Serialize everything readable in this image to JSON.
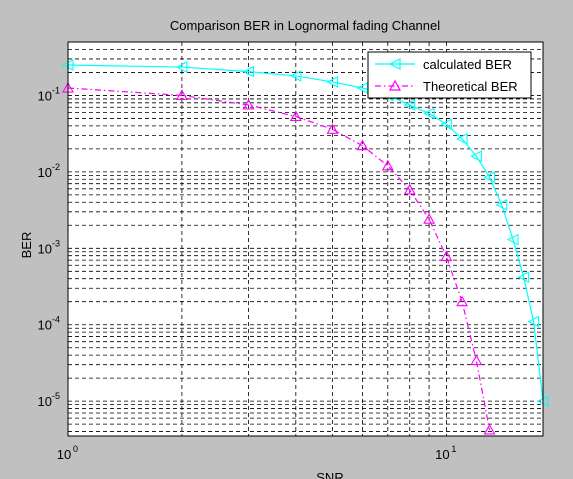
{
  "figure": {
    "background": "#c0c0c0",
    "axes_background": "#ffffff"
  },
  "chart_data": {
    "type": "line",
    "title": "Comparison BER in Lognormal fading Channel",
    "xlabel": "SNR",
    "ylabel": "BER",
    "xscale": "log",
    "yscale": "log",
    "xlim": [
      1,
      18
    ],
    "ylim": [
      3.5e-06,
      0.5
    ],
    "grid": "major and minor, dashed",
    "legend_position": "top-right",
    "x_ticks": [
      {
        "value": 1,
        "base": "10",
        "exp": "0"
      },
      {
        "value": 10,
        "base": "10",
        "exp": "1"
      }
    ],
    "y_ticks": [
      {
        "value": 1e-05,
        "base": "10",
        "exp": "-5"
      },
      {
        "value": 0.0001,
        "base": "10",
        "exp": "-4"
      },
      {
        "value": 0.001,
        "base": "10",
        "exp": "-3"
      },
      {
        "value": 0.01,
        "base": "10",
        "exp": "-2"
      },
      {
        "value": 0.1,
        "base": "10",
        "exp": "-1"
      }
    ],
    "series": [
      {
        "name": "calculated BER",
        "color": "#00ffff",
        "line": "solid",
        "marker": "triangle-left",
        "x": [
          1,
          2,
          3,
          4,
          5,
          6,
          7,
          8,
          9,
          10,
          11,
          12,
          13,
          14,
          15,
          16,
          17,
          18
        ],
        "y": [
          0.25,
          0.235,
          0.205,
          0.18,
          0.15,
          0.125,
          0.1,
          0.075,
          0.058,
          0.042,
          0.027,
          0.016,
          0.0085,
          0.0037,
          0.0013,
          0.00042,
          0.00011,
          1e-05
        ]
      },
      {
        "name": "Theoretical BER",
        "color": "#ff00ff",
        "line": "dashdot",
        "marker": "triangle-up",
        "x": [
          1,
          2,
          3,
          4,
          5,
          6,
          7,
          8,
          9,
          10,
          11,
          12,
          13
        ],
        "y": [
          0.125,
          0.1,
          0.075,
          0.053,
          0.036,
          0.022,
          0.012,
          0.0058,
          0.0024,
          0.00078,
          0.0002,
          3.4e-05,
          4.2e-06
        ]
      }
    ]
  }
}
